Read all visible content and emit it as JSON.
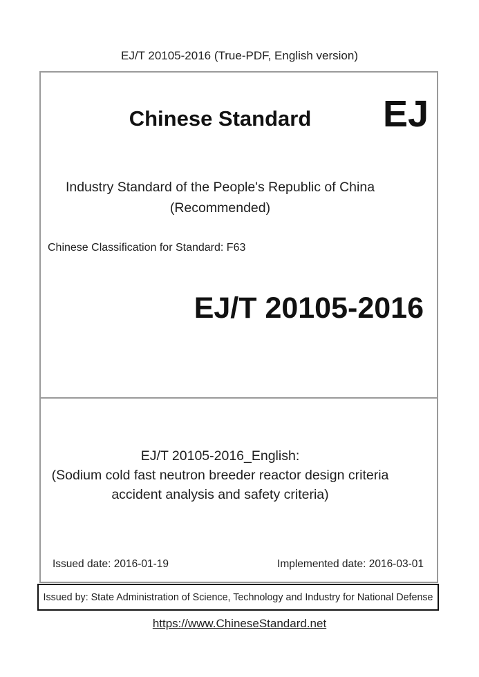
{
  "header": {
    "text": "EJ/T 20105-2016 (True-PDF, English version)"
  },
  "cover": {
    "title": "Chinese Standard",
    "logo": "EJ",
    "subtitle_line1": "Industry Standard of the People's Republic of China",
    "subtitle_line2": "(Recommended)",
    "classification": "Chinese Classification for Standard: F63",
    "standard_number": "EJ/T 20105-2016",
    "english_title_line1": "EJ/T 20105-2016_English:",
    "english_title_line2": "(Sodium cold fast neutron breeder reactor design criteria",
    "english_title_line3": "accident analysis and safety criteria)",
    "issued_date": "Issued date: 2016-01-19",
    "implemented_date": "Implemented date: 2016-03-01"
  },
  "issued_by": {
    "text": "Issued by: State Administration of Science, Technology and Industry for National Defense"
  },
  "footer": {
    "link": "https://www.ChineseStandard.net"
  },
  "colors": {
    "main_box_border": "#9a9a9a",
    "issued_box_border": "#111111",
    "text": "#1f1f1f",
    "background": "#ffffff"
  }
}
